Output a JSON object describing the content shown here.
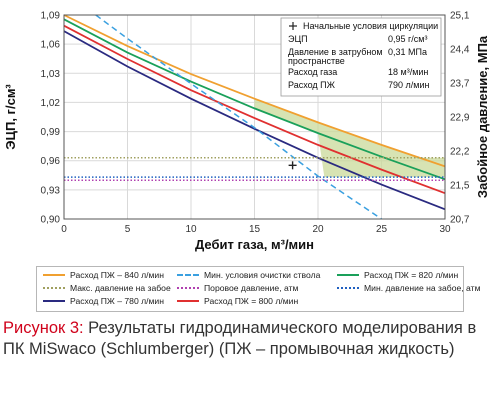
{
  "chart_data": {
    "type": "line",
    "x": [
      0,
      5,
      10,
      15,
      20,
      25,
      30
    ],
    "xlabel": "Дебит газа, м³/мин",
    "ylabel": "ЭЦП, г/см³",
    "y2label": "Забойное давление, МПа",
    "xlim": [
      0,
      30
    ],
    "ylim": [
      0.9,
      1.09
    ],
    "y2lim": [
      20.7,
      25.1
    ],
    "xticks": [
      "0",
      "5",
      "10",
      "15",
      "20",
      "25",
      "30"
    ],
    "yticks": [
      "0,90",
      "0,93",
      "0,96",
      "0,99",
      "1,02",
      "1,03",
      "1,06",
      "1,09"
    ],
    "y2ticks": [
      "20,7",
      "21,5",
      "22,2",
      "22,9",
      "23,7",
      "24,4",
      "25,1"
    ],
    "grid": true,
    "series": [
      {
        "name": "Расход ПЖ – 840 л/мин",
        "color": "#f0a030",
        "style": "solid",
        "values": [
          1.09,
          1.061,
          1.035,
          1.012,
          0.99,
          0.969,
          0.949
        ]
      },
      {
        "name": "Расход ПЖ – 820 л/мин",
        "color": "#1aa05a",
        "style": "solid",
        "values": [
          1.086,
          1.055,
          1.028,
          1.003,
          0.98,
          0.958,
          0.937
        ]
      },
      {
        "name": "Расход ПЖ = 800 л/мин",
        "color": "#e03030",
        "style": "solid",
        "values": [
          1.08,
          1.049,
          1.02,
          0.994,
          0.969,
          0.946,
          0.924
        ]
      },
      {
        "name": "Расход ПЖ – 780 л/мин",
        "color": "#2a2a80",
        "style": "solid",
        "values": [
          1.075,
          1.042,
          1.012,
          0.984,
          0.957,
          0.932,
          0.909
        ]
      },
      {
        "name": "Мин. условия очистки ствола",
        "color": "#3aa0e0",
        "style": "dashed",
        "x": [
          2.5,
          5,
          10,
          15,
          20,
          25
        ],
        "values": [
          1.09,
          1.068,
          1.026,
          0.985,
          0.94,
          0.9
        ]
      },
      {
        "name": "Макс. давление на забое",
        "color": "#a0a060",
        "style": "dotted",
        "x": [
          0,
          30
        ],
        "values": [
          0.957,
          0.957
        ]
      },
      {
        "name": "Поровое давление, атм",
        "color": "#b040b0",
        "style": "dotted",
        "x": [
          0,
          30
        ],
        "values": [
          0.936,
          0.936
        ]
      },
      {
        "name": "Мин. давление на забое, атм",
        "color": "#2060c0",
        "style": "dotted",
        "x": [
          0,
          30
        ],
        "values": [
          0.939,
          0.939
        ]
      }
    ],
    "marker": {
      "name": "Начальные условия циркуляции",
      "x": 18,
      "y": 0.95,
      "symbol": "+"
    },
    "annotation": {
      "rows": [
        {
          "label": "ЭЦП",
          "value": "0,95 г/см³"
        },
        {
          "label": "Давление в затрубном пространстве",
          "value": "0,31 МПа"
        },
        {
          "label": "Расход газа",
          "value": "18 м³/мин"
        },
        {
          "label": "Расход ПЖ",
          "value": "790 л/мин"
        }
      ]
    },
    "shaded_region": {
      "color": "#c9d99a"
    }
  },
  "legend": [
    {
      "label": "Расход ПЖ – 840 л/мин",
      "color": "#f0a030",
      "style": "solid"
    },
    {
      "label": "Мин. условия очистки ствола",
      "color": "#3aa0e0",
      "style": "dashed"
    },
    {
      "label": "Расход ПЖ = 820 л/мин",
      "color": "#1aa05a",
      "style": "solid"
    },
    {
      "label": "Макс. давление на забое",
      "color": "#a0a060",
      "style": "dotted"
    },
    {
      "label": "Поровое давление, атм",
      "color": "#b040b0",
      "style": "dotted"
    },
    {
      "label": "Мин. давление на забое, атм",
      "color": "#2060c0",
      "style": "dotted"
    },
    {
      "label": "Расход ПЖ – 780 л/мин",
      "color": "#2a2a80",
      "style": "solid"
    },
    {
      "label": "Расход ПЖ = 800 л/мин",
      "color": "#e03030",
      "style": "solid"
    }
  ],
  "caption": {
    "label": "Рисунок 3:",
    "text": "Результаты гидродинамического моделирования в ПК MiSwaco (Schlumberger) (ПЖ – промывочная жидкость)"
  }
}
